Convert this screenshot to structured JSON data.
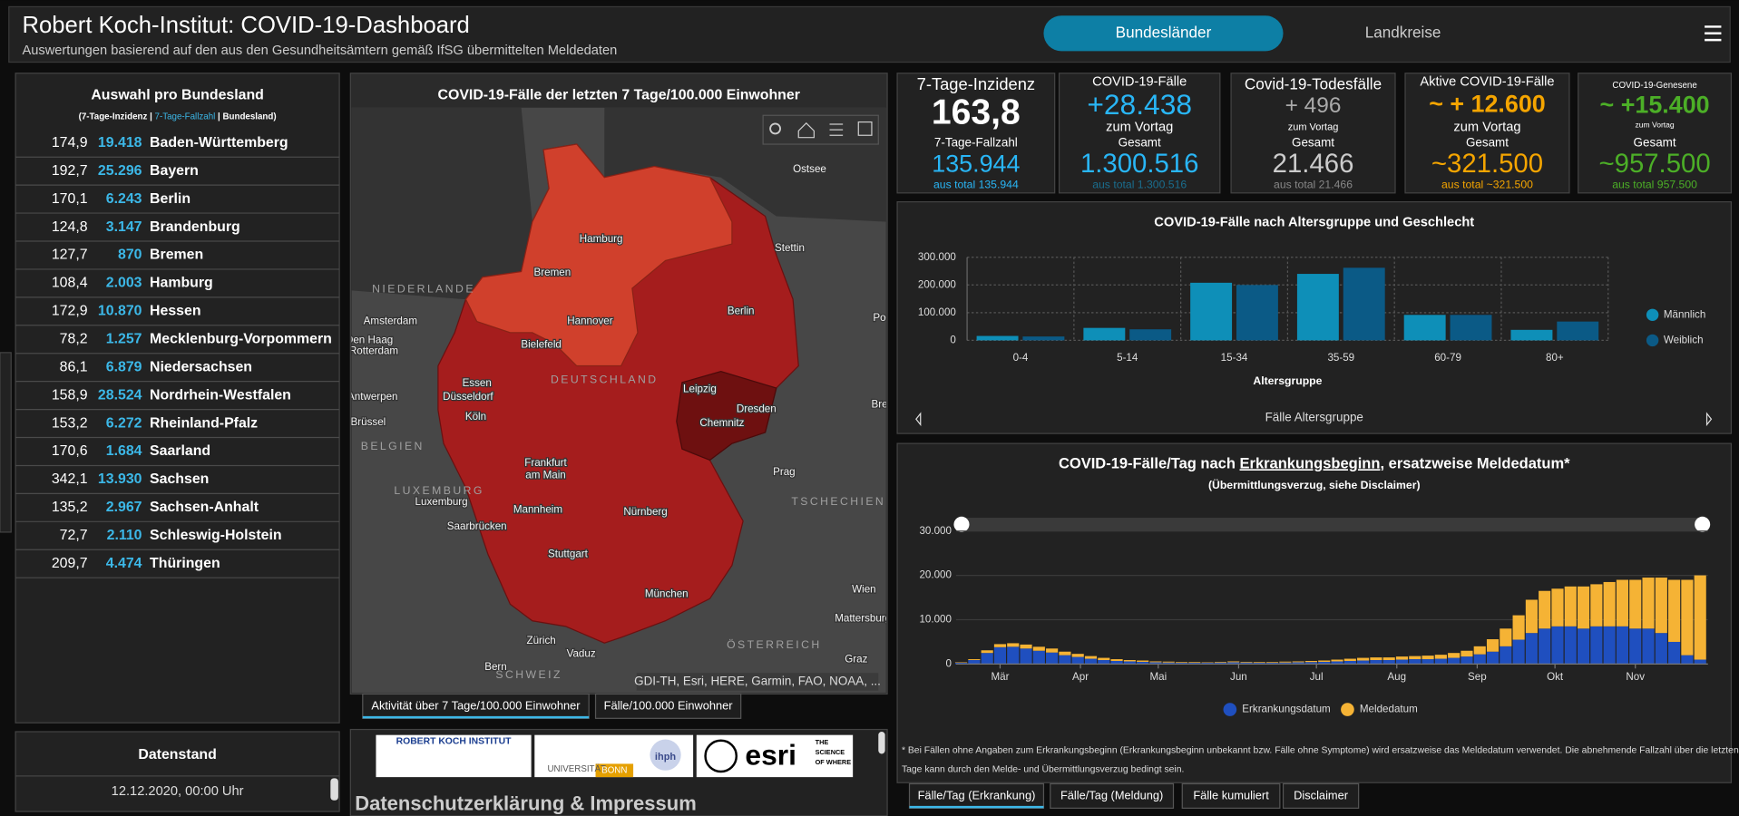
{
  "header": {
    "title": "Robert Koch-Institut: COVID-19-Dashboard",
    "subtitle": "Auswertungen basierend auf den aus den Gesundheitsämtern gemäß IfSG übermittelten Meldedaten",
    "tabs": [
      "Bundesländer",
      "Landkreise"
    ]
  },
  "states_panel": {
    "title": "Auswahl pro Bundesland",
    "legend": [
      "(7-Tage-Inzidenz | ",
      "7-Tage-Fallzahl",
      " | Bundesland)"
    ],
    "rows": [
      [
        "174,9",
        "19.418",
        "Baden-Württemberg"
      ],
      [
        "192,7",
        "25.296",
        "Bayern"
      ],
      [
        "170,1",
        "6.243",
        "Berlin"
      ],
      [
        "124,8",
        "3.147",
        "Brandenburg"
      ],
      [
        "127,7",
        "870",
        "Bremen"
      ],
      [
        "108,4",
        "2.003",
        "Hamburg"
      ],
      [
        "172,9",
        "10.870",
        "Hessen"
      ],
      [
        "78,2",
        "1.257",
        "Mecklenburg-Vorpommern"
      ],
      [
        "86,1",
        "6.879",
        "Niedersachsen"
      ],
      [
        "158,9",
        "28.524",
        "Nordrhein-Westfalen"
      ],
      [
        "153,2",
        "6.272",
        "Rheinland-Pfalz"
      ],
      [
        "170,6",
        "1.684",
        "Saarland"
      ],
      [
        "342,1",
        "13.930",
        "Sachsen"
      ],
      [
        "135,2",
        "2.967",
        "Sachsen-Anhalt"
      ],
      [
        "72,7",
        "2.110",
        "Schleswig-Holstein"
      ],
      [
        "209,7",
        "4.474",
        "Thüringen"
      ]
    ]
  },
  "date_panel": {
    "title": "Datenstand",
    "value": "12.12.2020, 00:00 Uhr"
  },
  "map": {
    "title": "COVID-19-Fälle der letzten 7 Tage/100.000 Einwohner",
    "labels": [
      "Ostsee",
      "Hamburg",
      "Stettin",
      "Bremen",
      "Berlin",
      "NIEDERLANDE",
      "Hannover",
      "Amsterdam",
      "Den Haag",
      "Rotterdam",
      "Bielefeld",
      "DEUTSCHLAND",
      "Essen",
      "Leipzig",
      "Düsseldorf",
      "Antwerpen",
      "Dresden",
      "Köln",
      "Chemnitz",
      "Brüssel",
      "BELGIEN",
      "Frankfurt",
      "am Main",
      "Prag",
      "LUXEMBURG",
      "Luxemburg",
      "TSCHECHIEN",
      "Mannheim",
      "Nürnberg",
      "Saarbrücken",
      "Stuttgart",
      "Wien",
      "München",
      "Mattersburg",
      "Zürich",
      "ÖSTERREICH",
      "Vaduz",
      "Graz",
      "Bern",
      "SCHWEIZ",
      "Po",
      "Bre"
    ],
    "attribution": "GDI-TH, Esri, HERE, Garmin, FAO, NOAA, ...",
    "tabs": [
      "Aktivität über 7 Tage/100.000 Einwohner",
      "Fälle/100.000 Einwohner"
    ]
  },
  "logos": {
    "items": [
      "ROBERT KOCH INSTITUT",
      "UNIVERSITÄT",
      "BONN",
      "ihph",
      "esri",
      "THE",
      "SCIENCE",
      "OF WHERE"
    ],
    "link": "Datenschutzerklärung & Impressum"
  },
  "kpis": [
    {
      "title": "7-Tage-Inzidenz",
      "value": "163,8",
      "label": "7-Tage-Fallzahl",
      "total": "135.944",
      "total_note": "aus total 135.944"
    },
    {
      "title": "COVID-19-Fälle",
      "value": "+28.438",
      "note": "zum Vortag",
      "label": "Gesamt",
      "total": "1.300.516",
      "total_note": "aus total 1.300.516"
    },
    {
      "title": "Covid-19-Todesfälle",
      "value": "+ 496",
      "note": "zum Vortag",
      "label": "Gesamt",
      "total": "21.466",
      "total_note": "aus total 21.466"
    },
    {
      "title": "Aktive COVID-19-Fälle",
      "value": "~ + 12.600",
      "note": "zum Vortag",
      "label": "Gesamt",
      "total": "~321.500",
      "total_note": "aus total ~321.500"
    },
    {
      "title": "COVID-19-Genesene",
      "value": "~ +15.400",
      "note": "zum Vortag",
      "label": "Gesamt",
      "total": "~957.500",
      "total_note": "aus total 957.500"
    }
  ],
  "chart_data": [
    {
      "type": "bar",
      "title": "COVID-19-Fälle nach Altersgruppe und Geschlecht",
      "x_label": "Altersgruppe",
      "categories": [
        "0-4",
        "5-14",
        "15-34",
        "35-59",
        "60-79",
        "80+"
      ],
      "series": [
        {
          "name": "Männlich",
          "color": "#0e8fb8",
          "values": [
            16000,
            45000,
            208000,
            240000,
            92000,
            38000
          ]
        },
        {
          "name": "Weiblich",
          "color": "#0b5a86",
          "values": [
            14000,
            40000,
            200000,
            262000,
            92000,
            68000
          ]
        }
      ],
      "ylim": [
        0,
        300000
      ],
      "yticks": [
        0,
        {
          "value": 100000,
          "label": "100.000"
        },
        {
          "value": 200000,
          "label": "200.000"
        },
        {
          "value": 300000,
          "label": "300.000"
        }
      ],
      "grid": true,
      "footer": "Fälle Altersgruppe"
    },
    {
      "type": "stacked_bar",
      "title": [
        "COVID-19-Fälle/Tag nach ",
        "Erkrankungsbeginn",
        ", ersatzweise Meldedatum*"
      ],
      "subtitle": "(Übermittlungsverzug, siehe Disclaimer)",
      "x": [
        0,
        5,
        10,
        15,
        20,
        25,
        30,
        35,
        40,
        45,
        50,
        55,
        60,
        65,
        70,
        75,
        80,
        85,
        90,
        95,
        100,
        105,
        110,
        115,
        120,
        125,
        130,
        135,
        140,
        145,
        150,
        155,
        160,
        165,
        170,
        175,
        180,
        185,
        190,
        195,
        200,
        205,
        210,
        215,
        220,
        225,
        230,
        235,
        240,
        245,
        250,
        255,
        260,
        265,
        270,
        275,
        280,
        285
      ],
      "xlim": [
        -2,
        288
      ],
      "xticks": [
        {
          "value": 15,
          "label": "Mär"
        },
        {
          "value": 46,
          "label": "Apr"
        },
        {
          "value": 76,
          "label": "Mai"
        },
        {
          "value": 107,
          "label": "Jun"
        },
        {
          "value": 137,
          "label": "Jul"
        },
        {
          "value": 168,
          "label": "Aug"
        },
        {
          "value": 199,
          "label": "Sep"
        },
        {
          "value": 229,
          "label": "Okt"
        },
        {
          "value": 260,
          "label": "Nov"
        }
      ],
      "series": [
        {
          "name": "Erkrankungsdatum",
          "color": "#1f4fbf",
          "values": [
            300,
            900,
            2500,
            3800,
            3900,
            3500,
            3000,
            2600,
            2000,
            1600,
            1200,
            900,
            700,
            600,
            500,
            400,
            350,
            300,
            300,
            300,
            350,
            400,
            350,
            300,
            300,
            350,
            400,
            450,
            500,
            600,
            700,
            800,
            900,
            900,
            1000,
            1100,
            1100,
            1200,
            1400,
            1700,
            2200,
            2800,
            4000,
            5500,
            7000,
            8000,
            8500,
            8500,
            8000,
            8500,
            8500,
            8500,
            8000,
            8000,
            7000,
            5000,
            2000,
            1000
          ]
        },
        {
          "name": "Meldedatum",
          "color": "#f5b335",
          "values": [
            100,
            200,
            600,
            700,
            800,
            900,
            900,
            900,
            800,
            700,
            600,
            500,
            400,
            300,
            300,
            200,
            200,
            150,
            150,
            100,
            150,
            200,
            150,
            150,
            150,
            200,
            200,
            250,
            300,
            400,
            500,
            600,
            600,
            600,
            700,
            700,
            800,
            900,
            1100,
            1300,
            1800,
            2800,
            4000,
            5500,
            7500,
            8500,
            8500,
            9000,
            9500,
            9500,
            10000,
            10500,
            11000,
            11500,
            12500,
            14000,
            17000,
            19000
          ]
        }
      ],
      "ylim": [
        0,
        30000
      ],
      "yticks": [
        0,
        {
          "value": 10000,
          "label": "10.000"
        },
        {
          "value": 20000,
          "label": "20.000"
        },
        {
          "value": 30000,
          "label": "30.000"
        }
      ],
      "grid": true
    }
  ],
  "footnote": [
    "* Bei Fällen ohne Angaben zum Erkrankungsbeginn (Erkrankungsbeginn unbekannt bzw. Fälle ohne Symptome) wird ersatzweise das Meldedatum verwendet. Die abnehmende Fallzahl über die letzten",
    "Tage kann durch den Melde- und Übermittlungsverzug bedingt sein."
  ],
  "bottom_tabs": [
    "Fälle/Tag (Erkrankung)",
    "Fälle/Tag (Meldung)",
    "Fälle kumuliert",
    "Disclaimer"
  ]
}
